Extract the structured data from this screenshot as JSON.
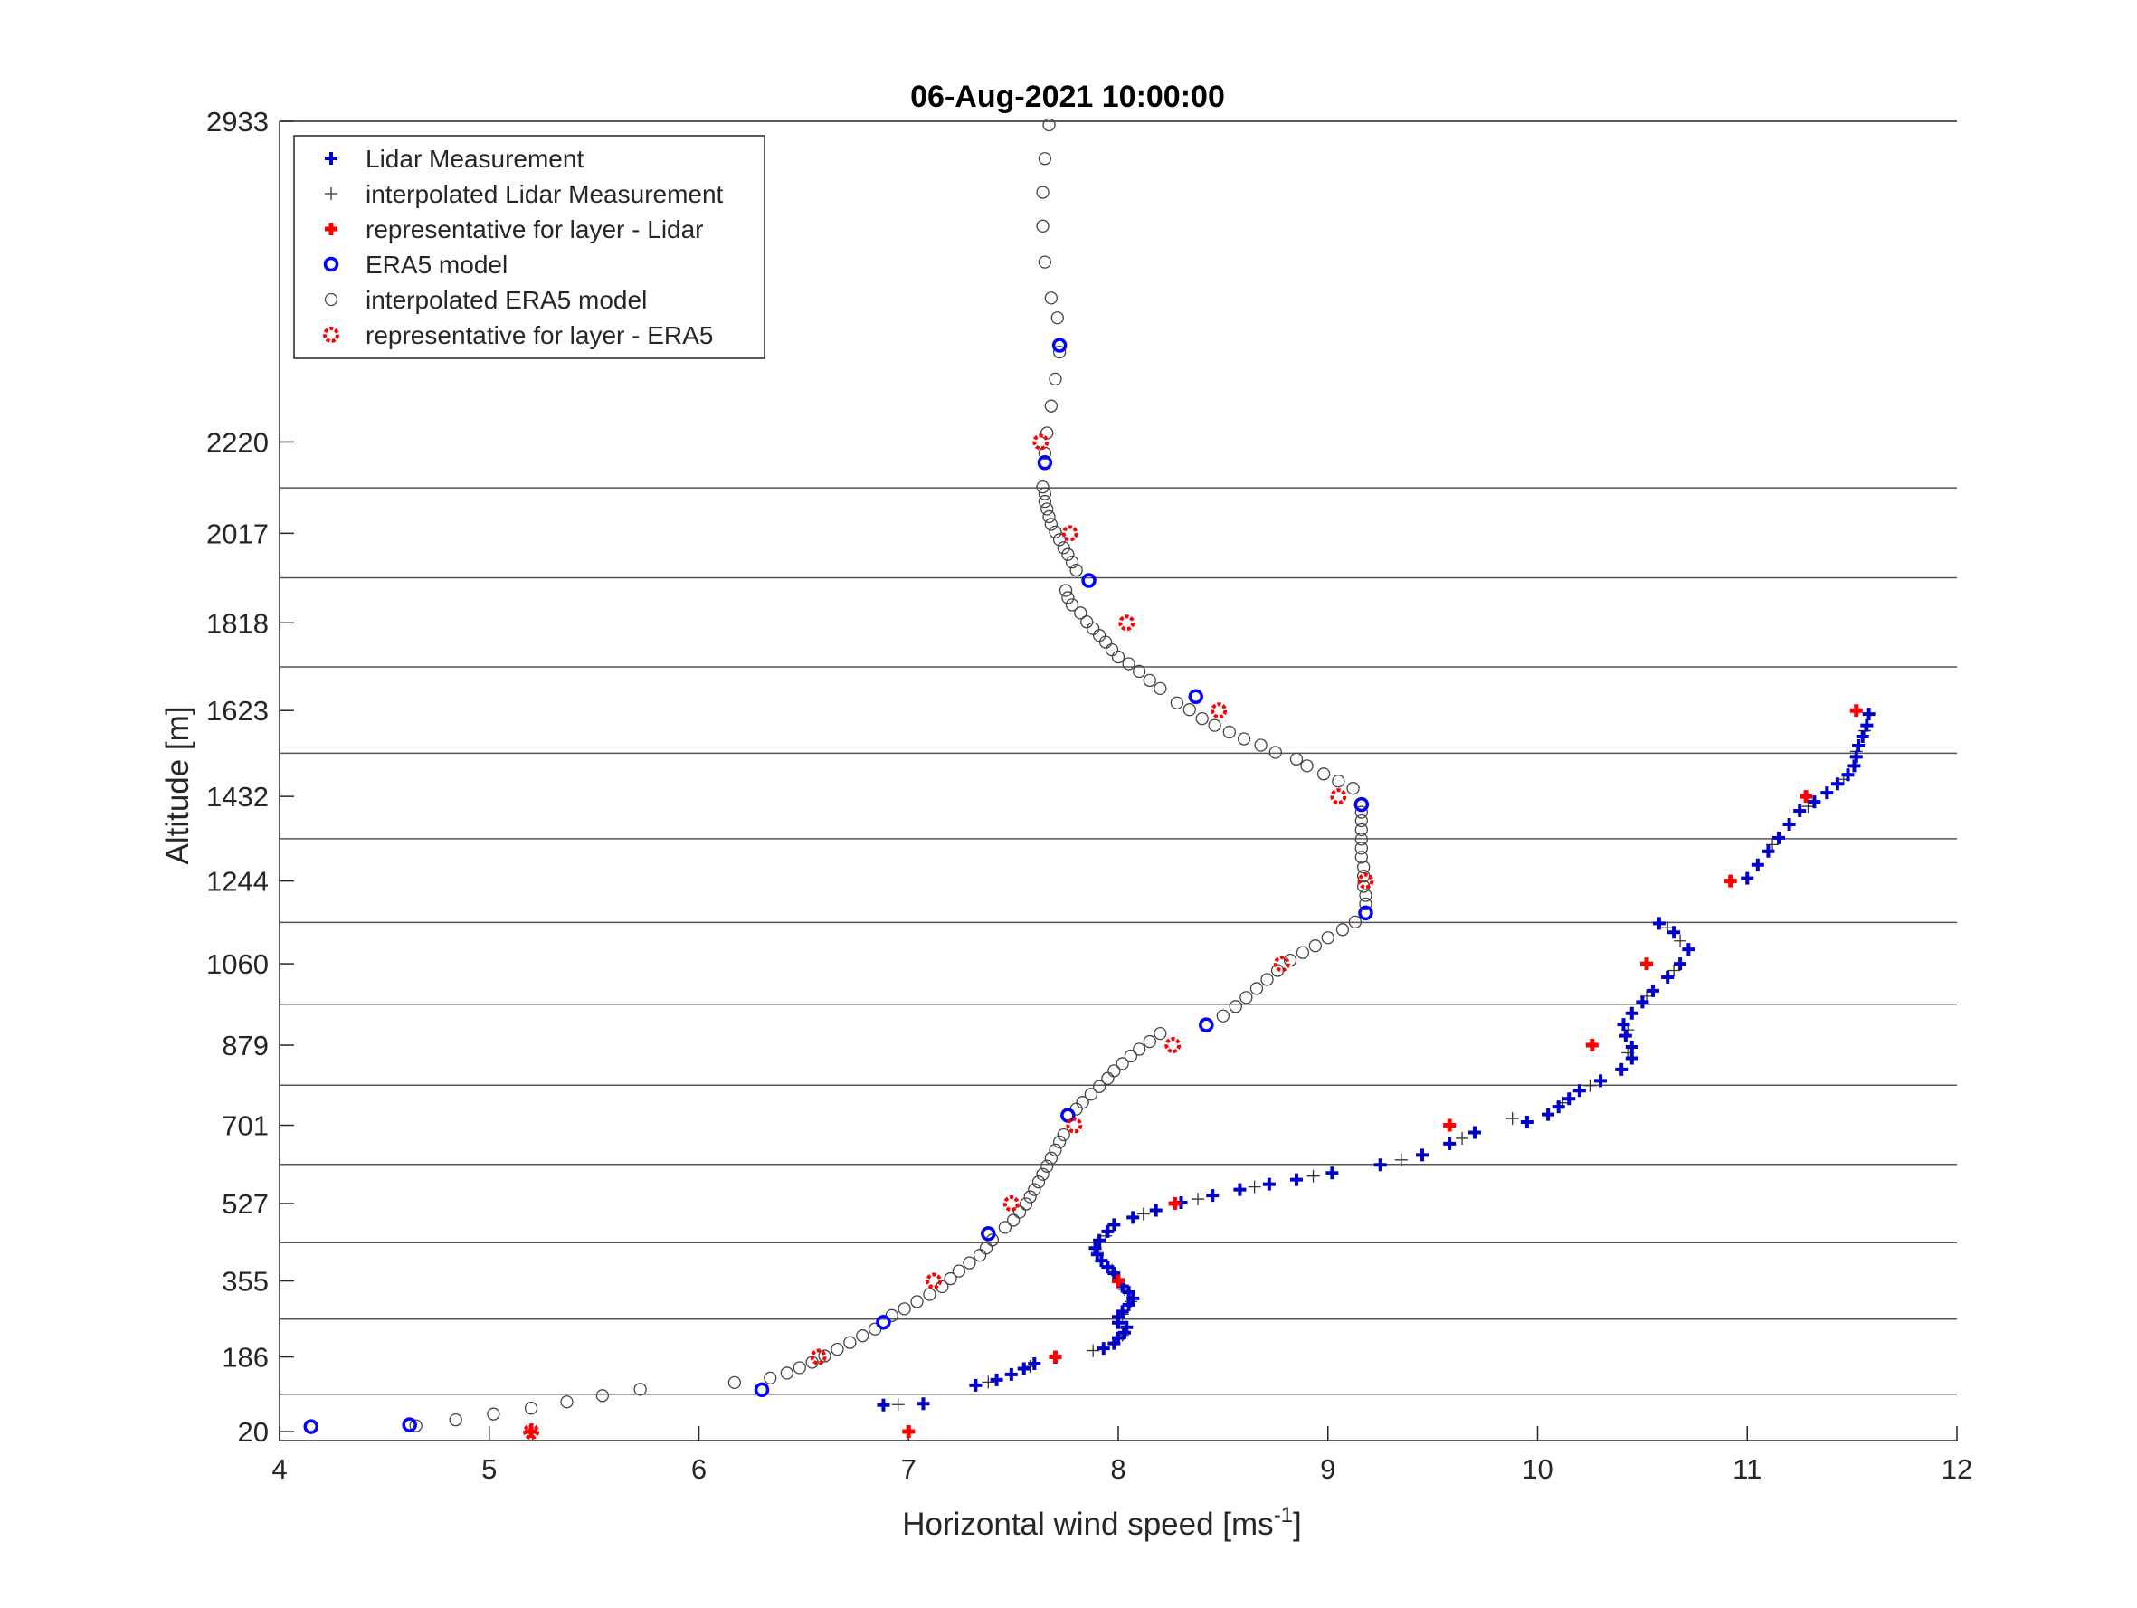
{
  "chart_data": {
    "type": "scatter",
    "title": "06-Aug-2021 10:00:00",
    "xlabel": "Horizontal wind speed [ms",
    "xlabel_sup": "-1",
    "xlabel_end": "]",
    "ylabel": "Altitude [m]",
    "xlim": [
      4,
      12
    ],
    "ylim": [
      0,
      2933
    ],
    "xticks": [
      4,
      5,
      6,
      7,
      8,
      9,
      10,
      11,
      12
    ],
    "yticks": [
      20,
      186,
      355,
      527,
      701,
      879,
      1060,
      1244,
      1432,
      1623,
      1818,
      2017,
      2220,
      2933
    ],
    "layer_lines": [
      103,
      270,
      440,
      614,
      790,
      970,
      1152,
      1338,
      1528,
      1720,
      1918,
      2118
    ],
    "legend_position": "top-left",
    "grid": "horizontal layer lines",
    "colors": {
      "blue": "#0000ff",
      "red": "#ff0000",
      "gray": "#555555"
    },
    "series": [
      {
        "name": "Lidar Measurement",
        "marker": "plus-bold",
        "color": "#0000cc",
        "points": [
          [
            6.88,
            79
          ],
          [
            7.07,
            82
          ],
          [
            7.32,
            123
          ],
          [
            7.42,
            135
          ],
          [
            7.49,
            147
          ],
          [
            7.55,
            160
          ],
          [
            7.6,
            171
          ],
          [
            7.7,
            185
          ],
          [
            7.93,
            205
          ],
          [
            7.98,
            216
          ],
          [
            8.0,
            228
          ],
          [
            8.03,
            240
          ],
          [
            8.04,
            252
          ],
          [
            8.0,
            262
          ],
          [
            8.0,
            275
          ],
          [
            8.02,
            287
          ],
          [
            8.05,
            302
          ],
          [
            8.07,
            316
          ],
          [
            8.05,
            330
          ],
          [
            8.02,
            343
          ],
          [
            8.0,
            357
          ],
          [
            7.98,
            372
          ],
          [
            7.95,
            386
          ],
          [
            7.92,
            400
          ],
          [
            7.9,
            414
          ],
          [
            7.89,
            428
          ],
          [
            7.91,
            445
          ],
          [
            7.95,
            465
          ],
          [
            7.98,
            480
          ],
          [
            8.07,
            496
          ],
          [
            8.18,
            512
          ],
          [
            8.3,
            529
          ],
          [
            8.45,
            545
          ],
          [
            8.58,
            558
          ],
          [
            8.72,
            570
          ],
          [
            8.85,
            580
          ],
          [
            9.02,
            595
          ],
          [
            9.25,
            613
          ],
          [
            9.45,
            635
          ],
          [
            9.58,
            660
          ],
          [
            9.7,
            685
          ],
          [
            9.95,
            708
          ],
          [
            10.05,
            725
          ],
          [
            10.1,
            742
          ],
          [
            10.15,
            760
          ],
          [
            10.2,
            778
          ],
          [
            10.3,
            800
          ],
          [
            10.4,
            825
          ],
          [
            10.45,
            850
          ],
          [
            10.45,
            875
          ],
          [
            10.42,
            900
          ],
          [
            10.41,
            925
          ],
          [
            10.45,
            950
          ],
          [
            10.5,
            975
          ],
          [
            10.55,
            1000
          ],
          [
            10.62,
            1030
          ],
          [
            10.68,
            1060
          ],
          [
            10.72,
            1092
          ],
          [
            10.65,
            1130
          ],
          [
            10.58,
            1150
          ],
          [
            11.0,
            1250
          ],
          [
            11.05,
            1280
          ],
          [
            11.1,
            1310
          ],
          [
            11.15,
            1340
          ],
          [
            11.2,
            1370
          ],
          [
            11.25,
            1400
          ],
          [
            11.32,
            1420
          ],
          [
            11.38,
            1440
          ],
          [
            11.43,
            1460
          ],
          [
            11.48,
            1480
          ],
          [
            11.51,
            1500
          ],
          [
            11.52,
            1520
          ],
          [
            11.53,
            1545
          ],
          [
            11.55,
            1565
          ],
          [
            11.57,
            1590
          ],
          [
            11.58,
            1615
          ]
        ]
      },
      {
        "name": "interpolated Lidar Measurement",
        "marker": "plus",
        "color": "#333333",
        "points": [
          [
            6.95,
            80
          ],
          [
            7.38,
            130
          ],
          [
            7.58,
            165
          ],
          [
            7.88,
            200
          ],
          [
            8.02,
            234
          ],
          [
            8.02,
            281
          ],
          [
            8.06,
            309
          ],
          [
            8.03,
            336
          ],
          [
            7.97,
            379
          ],
          [
            7.9,
            421
          ],
          [
            7.94,
            455
          ],
          [
            8.12,
            504
          ],
          [
            8.38,
            537
          ],
          [
            8.65,
            564
          ],
          [
            8.93,
            588
          ],
          [
            9.35,
            624
          ],
          [
            9.64,
            672
          ],
          [
            9.88,
            716
          ],
          [
            10.12,
            751
          ],
          [
            10.25,
            789
          ],
          [
            10.43,
            862
          ],
          [
            10.43,
            913
          ],
          [
            10.52,
            988
          ],
          [
            10.65,
            1045
          ],
          [
            10.68,
            1111
          ],
          [
            10.62,
            1140
          ],
          [
            11.12,
            1325
          ],
          [
            11.29,
            1410
          ],
          [
            11.46,
            1470
          ],
          [
            11.52,
            1532
          ],
          [
            11.56,
            1578
          ]
        ]
      },
      {
        "name": "representative for layer - Lidar",
        "marker": "plus-red",
        "color": "#ff0000",
        "points": [
          [
            5.2,
            20
          ],
          [
            7.0,
            20
          ],
          [
            7.7,
            186
          ],
          [
            8.0,
            355
          ],
          [
            8.27,
            527
          ],
          [
            9.58,
            701
          ],
          [
            10.26,
            879
          ],
          [
            10.52,
            1060
          ],
          [
            10.92,
            1244
          ],
          [
            11.28,
            1432
          ],
          [
            11.52,
            1623
          ]
        ]
      },
      {
        "name": "ERA5 model",
        "marker": "circle-blue",
        "color": "#0000ff",
        "points": [
          [
            4.15,
            31
          ],
          [
            4.62,
            35
          ],
          [
            6.3,
            113
          ],
          [
            6.88,
            263
          ],
          [
            7.38,
            460
          ],
          [
            7.76,
            723
          ],
          [
            8.42,
            924
          ],
          [
            9.18,
            1173
          ],
          [
            9.16,
            1414
          ],
          [
            8.37,
            1654
          ],
          [
            7.86,
            1912
          ],
          [
            7.65,
            2174
          ],
          [
            7.72,
            2435
          ]
        ]
      },
      {
        "name": "interpolated ERA5 model",
        "marker": "circle",
        "color": "#444444",
        "points": [
          [
            4.65,
            33
          ],
          [
            4.84,
            46
          ],
          [
            5.02,
            59
          ],
          [
            5.2,
            72
          ],
          [
            5.37,
            86
          ],
          [
            5.54,
            100
          ],
          [
            5.72,
            114
          ],
          [
            6.17,
            129
          ],
          [
            6.34,
            139
          ],
          [
            6.42,
            150
          ],
          [
            6.48,
            162
          ],
          [
            6.54,
            174
          ],
          [
            6.6,
            188
          ],
          [
            6.66,
            203
          ],
          [
            6.72,
            218
          ],
          [
            6.78,
            233
          ],
          [
            6.84,
            248
          ],
          [
            6.92,
            278
          ],
          [
            6.98,
            293
          ],
          [
            7.04,
            309
          ],
          [
            7.1,
            325
          ],
          [
            7.16,
            342
          ],
          [
            7.2,
            360
          ],
          [
            7.24,
            377
          ],
          [
            7.29,
            395
          ],
          [
            7.34,
            412
          ],
          [
            7.37,
            428
          ],
          [
            7.4,
            446
          ],
          [
            7.46,
            474
          ],
          [
            7.5,
            490
          ],
          [
            7.53,
            508
          ],
          [
            7.56,
            526
          ],
          [
            7.58,
            542
          ],
          [
            7.6,
            558
          ],
          [
            7.62,
            575
          ],
          [
            7.64,
            592
          ],
          [
            7.66,
            610
          ],
          [
            7.68,
            628
          ],
          [
            7.7,
            646
          ],
          [
            7.72,
            664
          ],
          [
            7.74,
            680
          ],
          [
            7.8,
            737
          ],
          [
            7.83,
            752
          ],
          [
            7.87,
            770
          ],
          [
            7.91,
            787
          ],
          [
            7.95,
            805
          ],
          [
            7.98,
            822
          ],
          [
            8.02,
            838
          ],
          [
            8.06,
            855
          ],
          [
            8.1,
            870
          ],
          [
            8.15,
            887
          ],
          [
            8.2,
            905
          ],
          [
            8.5,
            944
          ],
          [
            8.56,
            965
          ],
          [
            8.61,
            985
          ],
          [
            8.66,
            1005
          ],
          [
            8.71,
            1025
          ],
          [
            8.76,
            1045
          ],
          [
            8.82,
            1068
          ],
          [
            8.88,
            1085
          ],
          [
            8.94,
            1100
          ],
          [
            9.0,
            1118
          ],
          [
            9.07,
            1136
          ],
          [
            9.13,
            1153
          ],
          [
            9.18,
            1193
          ],
          [
            9.18,
            1212
          ],
          [
            9.17,
            1232
          ],
          [
            9.17,
            1255
          ],
          [
            9.17,
            1275
          ],
          [
            9.16,
            1297
          ],
          [
            9.16,
            1317
          ],
          [
            9.16,
            1337
          ],
          [
            9.16,
            1358
          ],
          [
            9.16,
            1378
          ],
          [
            9.16,
            1397
          ],
          [
            9.12,
            1450
          ],
          [
            9.05,
            1466
          ],
          [
            8.98,
            1482
          ],
          [
            8.9,
            1500
          ],
          [
            8.85,
            1515
          ],
          [
            8.75,
            1530
          ],
          [
            8.68,
            1546
          ],
          [
            8.6,
            1560
          ],
          [
            8.53,
            1575
          ],
          [
            8.46,
            1590
          ],
          [
            8.4,
            1605
          ],
          [
            8.34,
            1625
          ],
          [
            8.28,
            1640
          ],
          [
            8.2,
            1672
          ],
          [
            8.15,
            1690
          ],
          [
            8.1,
            1710
          ],
          [
            8.05,
            1727
          ],
          [
            8.0,
            1742
          ],
          [
            7.97,
            1758
          ],
          [
            7.94,
            1775
          ],
          [
            7.91,
            1790
          ],
          [
            7.88,
            1805
          ],
          [
            7.85,
            1820
          ],
          [
            7.82,
            1840
          ],
          [
            7.78,
            1858
          ],
          [
            7.76,
            1874
          ],
          [
            7.75,
            1890
          ],
          [
            7.8,
            1935
          ],
          [
            7.78,
            1953
          ],
          [
            7.76,
            1970
          ],
          [
            7.74,
            1985
          ],
          [
            7.72,
            2003
          ],
          [
            7.7,
            2020
          ],
          [
            7.68,
            2037
          ],
          [
            7.67,
            2054
          ],
          [
            7.66,
            2071
          ],
          [
            7.65,
            2088
          ],
          [
            7.65,
            2105
          ],
          [
            7.64,
            2120
          ],
          [
            7.65,
            2195
          ],
          [
            7.66,
            2240
          ],
          [
            7.68,
            2300
          ],
          [
            7.7,
            2360
          ],
          [
            7.72,
            2420
          ],
          [
            7.71,
            2496
          ],
          [
            7.68,
            2540
          ],
          [
            7.65,
            2620
          ],
          [
            7.64,
            2700
          ],
          [
            7.64,
            2775
          ],
          [
            7.65,
            2850
          ],
          [
            7.67,
            2925
          ]
        ]
      },
      {
        "name": "representative for layer - ERA5",
        "marker": "circle-red",
        "color": "#ff0000",
        "points": [
          [
            5.2,
            20
          ],
          [
            6.57,
            186
          ],
          [
            7.12,
            355
          ],
          [
            7.49,
            527
          ],
          [
            7.79,
            701
          ],
          [
            8.26,
            879
          ],
          [
            8.78,
            1060
          ],
          [
            9.18,
            1244
          ],
          [
            9.05,
            1432
          ],
          [
            8.48,
            1623
          ],
          [
            8.04,
            1818
          ],
          [
            7.77,
            2017
          ],
          [
            7.63,
            2220
          ]
        ]
      }
    ],
    "legend": [
      "Lidar Measurement",
      "interpolated Lidar Measurement",
      "representative for layer - Lidar",
      "ERA5 model",
      "interpolated ERA5 model",
      "representative for layer - ERA5"
    ]
  }
}
